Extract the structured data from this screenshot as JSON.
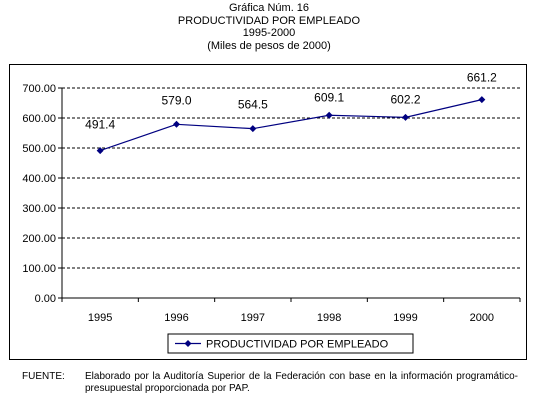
{
  "header": {
    "line1": "Gráfica Núm. 16",
    "line2": "PRODUCTIVIDAD POR EMPLEADO",
    "line3": "1995-2000",
    "line4": "(Miles de pesos de 2000)"
  },
  "chart_data": {
    "type": "line",
    "x": [
      "1995",
      "1996",
      "1997",
      "1998",
      "1999",
      "2000"
    ],
    "series": [
      {
        "name": "PRODUCTIVIDAD POR EMPLEADO",
        "values": [
          491.4,
          579.0,
          564.5,
          609.1,
          602.2,
          661.2
        ]
      }
    ],
    "data_labels": [
      "491.4",
      "579.0",
      "564.5",
      "609.1",
      "602.2",
      "661.2"
    ],
    "yticks": [
      "0.00",
      "100.00",
      "200.00",
      "300.00",
      "400.00",
      "500.00",
      "600.00",
      "700.00"
    ],
    "ylim": [
      0,
      700
    ],
    "grid": "horizontal dashed",
    "legend": "bottom-center",
    "series_color": "#000080"
  },
  "footer": {
    "label": "FUENTE:",
    "text": "Elaborado por la Auditoría Superior de la Federación con base en la información programático-presupuestal proporcionada por PAP."
  }
}
